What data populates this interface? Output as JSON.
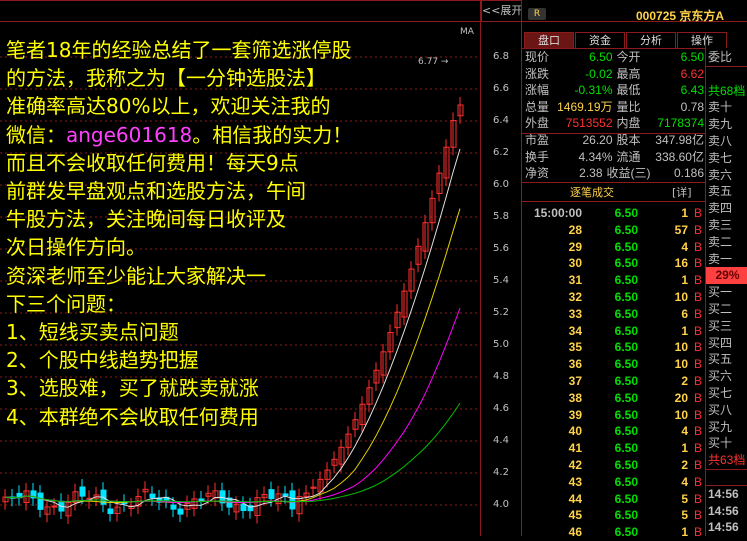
{
  "toolbar": {
    "expand_label": "<<展开"
  },
  "chart": {
    "ma_label": "MA",
    "high_marker": "6.77",
    "y_ticks": [
      "6.8",
      "6.6",
      "6.4",
      "6.2",
      "6.0",
      "5.8",
      "5.6",
      "5.4",
      "5.2",
      "5.0",
      "4.8",
      "4.6",
      "4.4",
      "4.2",
      "4.0"
    ],
    "colors": {
      "up": "#ff3030",
      "down": "#00e5ff",
      "ma5": "#e0e0e0",
      "ma10": "#e0d000",
      "ma20": "#ff00ff",
      "ma60": "#00c000",
      "grid": "#8b1a1a"
    }
  },
  "overlay": {
    "lines": [
      "笔者18年的经验总结了一套筛选涨停股",
      "的方法，我称之为【一分钟选股法】",
      "准确率高达80%以上，欢迎关注我的",
      "微信：",
      "。相信我的实力！",
      "而且不会收取任何费用！每天9点",
      "前群发早盘观点和选股方法，午间",
      "牛股方法，关注晚间每日收评及",
      "次日操作方向。",
      "资深老师至少能让大家解决一",
      "下三个问题：",
      "1、短线买卖点问题",
      "2、个股中线趋势把握",
      "3、选股难，买了就跌卖就涨",
      "4、本群绝不会收取任何费用"
    ],
    "wechat": "ange601618"
  },
  "header": {
    "badge": "R",
    "code": "000725 京东方A"
  },
  "tabs": [
    "盘口",
    "资金",
    "分析",
    "操作"
  ],
  "quote": [
    {
      "l1": "现价",
      "v1": "6.50",
      "c1": "green",
      "l2": "今开",
      "v2": "6.50",
      "c2": "green"
    },
    {
      "l1": "涨跌",
      "v1": "-0.02",
      "c1": "green",
      "l2": "最高",
      "v2": "6.62",
      "c2": "red"
    },
    {
      "l1": "涨幅",
      "v1": "-0.31%",
      "c1": "green",
      "l2": "最低",
      "v2": "6.43",
      "c2": "green"
    },
    {
      "l1": "总量",
      "v1": "1469.19万",
      "c1": "yel",
      "l2": "量比",
      "v2": "0.78",
      "c2": "gray"
    },
    {
      "l1": "外盘",
      "v1": "7513552",
      "c1": "red",
      "l2": "内盘",
      "v2": "7178374",
      "c2": "green"
    },
    {
      "l1": "市盈",
      "v1": "26.20",
      "c1": "gray",
      "l2": "股本",
      "v2": "347.98亿",
      "c2": "gray"
    },
    {
      "l1": "换手",
      "v1": "4.34%",
      "c1": "gray",
      "l2": "流通",
      "v2": "338.60亿",
      "c2": "gray"
    },
    {
      "l1": "净资",
      "v1": "2.38",
      "c1": "gray",
      "l2": "收益(三)",
      "v2": "0.186",
      "c2": "gray"
    }
  ],
  "trades_header": {
    "title": "逐笔成交",
    "detail": "[详]"
  },
  "trades": [
    {
      "t": "15:00:00",
      "p": "6.50",
      "v": "1",
      "s": "B"
    },
    {
      "t": "28",
      "p": "6.50",
      "v": "57",
      "s": "B"
    },
    {
      "t": "29",
      "p": "6.50",
      "v": "4",
      "s": "B"
    },
    {
      "t": "30",
      "p": "6.50",
      "v": "16",
      "s": "B"
    },
    {
      "t": "31",
      "p": "6.50",
      "v": "1",
      "s": "B"
    },
    {
      "t": "32",
      "p": "6.50",
      "v": "10",
      "s": "B"
    },
    {
      "t": "33",
      "p": "6.50",
      "v": "6",
      "s": "B"
    },
    {
      "t": "34",
      "p": "6.50",
      "v": "1",
      "s": "B"
    },
    {
      "t": "35",
      "p": "6.50",
      "v": "10",
      "s": "B"
    },
    {
      "t": "36",
      "p": "6.50",
      "v": "10",
      "s": "B"
    },
    {
      "t": "37",
      "p": "6.50",
      "v": "2",
      "s": "B"
    },
    {
      "t": "38",
      "p": "6.50",
      "v": "20",
      "s": "B"
    },
    {
      "t": "39",
      "p": "6.50",
      "v": "10",
      "s": "B"
    },
    {
      "t": "40",
      "p": "6.50",
      "v": "4",
      "s": "B"
    },
    {
      "t": "41",
      "p": "6.50",
      "v": "1",
      "s": "B"
    },
    {
      "t": "42",
      "p": "6.50",
      "v": "2",
      "s": "B"
    },
    {
      "t": "43",
      "p": "6.50",
      "v": "4",
      "s": "B"
    },
    {
      "t": "44",
      "p": "6.50",
      "v": "5",
      "s": "B"
    },
    {
      "t": "45",
      "p": "6.50",
      "v": "5",
      "s": "B"
    },
    {
      "t": "46",
      "p": "6.50",
      "v": "1",
      "s": "B"
    }
  ],
  "side": {
    "ratio_label": "委比",
    "sell_total": "共68档",
    "sells": [
      "卖十",
      "卖九",
      "卖八",
      "卖七",
      "卖六",
      "卖五",
      "卖四",
      "卖三",
      "卖二",
      "卖一"
    ],
    "ratio": "29%",
    "buys": [
      "买一",
      "买二",
      "买三",
      "买四",
      "买五",
      "买六",
      "买七",
      "买八",
      "买九",
      "买十"
    ],
    "buy_total": "共63档",
    "times": [
      "14:56",
      "14:56",
      "14:56"
    ]
  }
}
